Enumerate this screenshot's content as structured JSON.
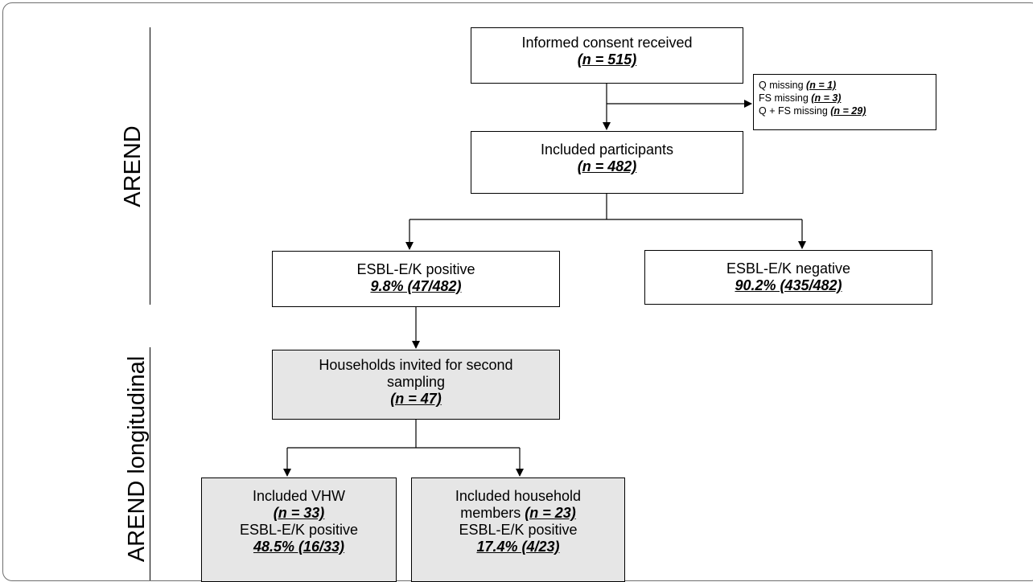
{
  "side_labels": {
    "arend": "AREND",
    "arend_longitudinal": "AREND longitudinal"
  },
  "boxes": {
    "consent": {
      "text": "Informed consent received",
      "num": "(n = 515)"
    },
    "excluded": {
      "lines": [
        {
          "text": "Q missing ",
          "num": "(n = 1)"
        },
        {
          "text": "FS missing ",
          "num": "(n = 3)"
        },
        {
          "text": "Q + FS missing ",
          "num": "(n = 29)"
        }
      ]
    },
    "included": {
      "text": "Included participants",
      "num": "(n = 482)"
    },
    "positive": {
      "text": "ESBL-E/K positive",
      "num": "9.8% (47/482)"
    },
    "negative": {
      "text": "ESBL-E/K negative",
      "num": "90.2% (435/482)"
    },
    "households": {
      "text": "Households invited for second sampling",
      "num": "(n = 47)"
    },
    "vhw": {
      "text": "Included VHW",
      "num": "(n = 33)",
      "text2": "ESBL-E/K positive",
      "num2": "48.5% (16/33)"
    },
    "members": {
      "text": "Included household members ",
      "num": "(n = 23)",
      "text2": "ESBL-E/K positive",
      "num2": "17.4% (4/23)"
    }
  },
  "colors": {
    "grey_box": "#e6e6e6",
    "line": "#000000"
  }
}
